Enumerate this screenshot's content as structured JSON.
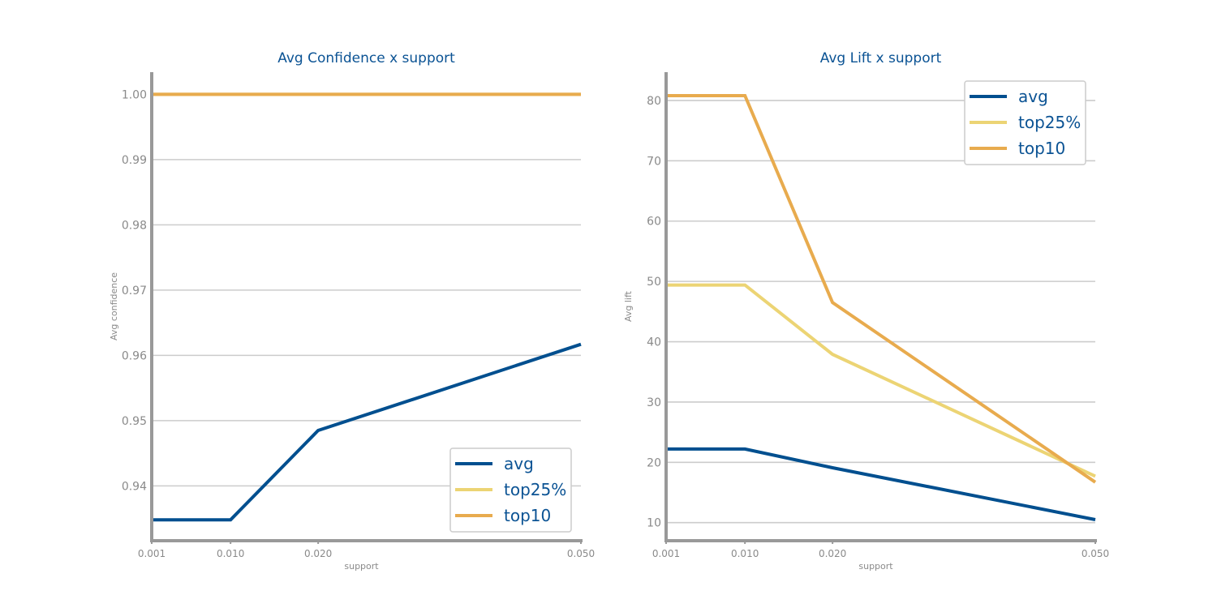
{
  "colors": {
    "avg": "#004f8f",
    "top25": "#ecd474",
    "top10": "#e8ab4e",
    "grid": "#cccccc",
    "axis": "#999999",
    "title": "#0b5394"
  },
  "chart_data": [
    {
      "type": "line",
      "title": "Avg Confidence x support",
      "xlabel": "support",
      "ylabel": "Avg confidence",
      "x": [
        0.001,
        0.01,
        0.02,
        0.05
      ],
      "x_tick_labels": [
        "0.001",
        "0.010",
        "0.020",
        "0.050"
      ],
      "y_ticks": [
        0.94,
        0.95,
        0.96,
        0.97,
        0.98,
        0.99,
        1.0
      ],
      "y_tick_labels": [
        "0.94",
        "0.95",
        "0.96",
        "0.97",
        "0.98",
        "0.99",
        "1.00"
      ],
      "ylim": [
        0.9316,
        1.0034
      ],
      "grid": true,
      "legend_position": "bottom-right",
      "series": [
        {
          "name": "avg",
          "color_key": "avg",
          "values": [
            0.9348,
            0.9348,
            0.9485,
            0.9617
          ]
        },
        {
          "name": "top25%",
          "color_key": "top25",
          "values": [
            1.0,
            1.0,
            1.0,
            1.0
          ]
        },
        {
          "name": "top10",
          "color_key": "top10",
          "values": [
            1.0,
            1.0,
            1.0,
            1.0
          ]
        }
      ]
    },
    {
      "type": "line",
      "title": "Avg Lift x support",
      "xlabel": "support",
      "ylabel": "Avg lift",
      "x": [
        0.001,
        0.01,
        0.02,
        0.05
      ],
      "x_tick_labels": [
        "0.001",
        "0.010",
        "0.020",
        "0.050"
      ],
      "y_ticks": [
        10,
        20,
        30,
        40,
        50,
        60,
        70,
        80
      ],
      "y_tick_labels": [
        "10",
        "20",
        "30",
        "40",
        "50",
        "60",
        "70",
        "80"
      ],
      "ylim": [
        7.0,
        84.7
      ],
      "grid": true,
      "legend_position": "top-right",
      "series": [
        {
          "name": "avg",
          "color_key": "avg",
          "values": [
            22.2,
            22.2,
            19.1,
            10.5
          ]
        },
        {
          "name": "top25%",
          "color_key": "top25",
          "values": [
            49.4,
            49.4,
            37.9,
            17.7
          ]
        },
        {
          "name": "top10",
          "color_key": "top10",
          "values": [
            80.8,
            80.8,
            46.5,
            16.7
          ]
        }
      ]
    }
  ]
}
